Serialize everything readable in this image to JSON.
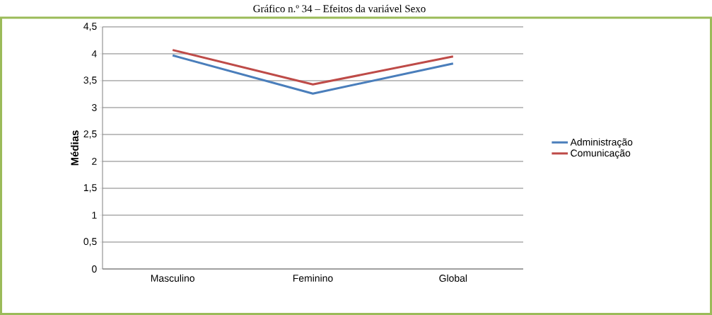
{
  "chart_data": {
    "type": "line",
    "title": "Gráfico n.º 34 – Efeitos da variável Sexo",
    "ylabel": "Médias",
    "categories": [
      "Masculino",
      "Feminino",
      "Global"
    ],
    "series": [
      {
        "name": "Administração",
        "color": "#4a7ebb",
        "values": [
          3.97,
          3.26,
          3.82
        ]
      },
      {
        "name": "Comunicação",
        "color": "#be4b48",
        "values": [
          4.07,
          3.43,
          3.95
        ]
      }
    ],
    "ylim": [
      0,
      4.5
    ],
    "yticks": [
      0,
      {
        "value": 0.5,
        "label": "0,5"
      },
      1,
      {
        "value": 1.5,
        "label": "1,5"
      },
      2,
      {
        "value": 2.5,
        "label": "2,5"
      },
      3,
      {
        "value": 3.5,
        "label": "3,5"
      },
      4,
      {
        "value": 4.5,
        "label": "4,5"
      }
    ],
    "grid": "y",
    "legend": "right",
    "marker": "none",
    "line_style": "solid"
  }
}
